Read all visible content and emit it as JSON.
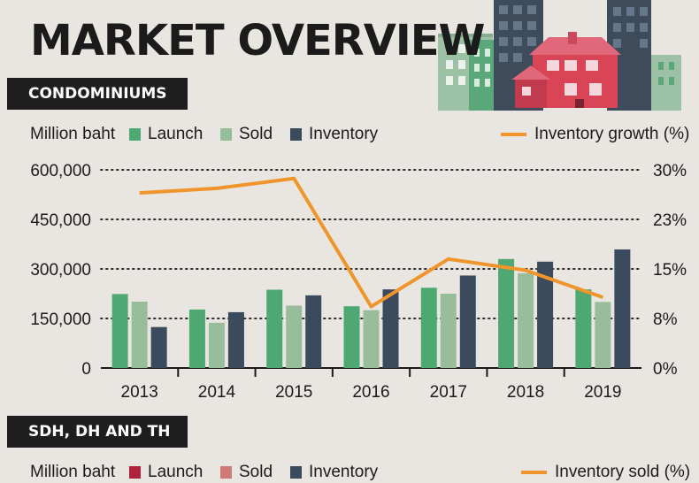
{
  "title": "MARKET OVERVIEW",
  "sections": {
    "condo": {
      "label": "CONDOMINIUMS"
    },
    "houses": {
      "label": "SDH, DH AND TH"
    }
  },
  "legend_top": {
    "unit": "Million baht",
    "launch": "Launch",
    "sold": "Sold",
    "inventory": "Inventory",
    "line": "Inventory growth (%)"
  },
  "legend_bottom": {
    "unit": "Million baht",
    "launch": "Launch",
    "sold": "Sold",
    "inventory": "Inventory",
    "line": "Inventory sold (%)"
  },
  "colors": {
    "launch": "#4ea872",
    "sold": "#98bd9a",
    "inventory": "#3b4a5c",
    "line": "#f0952c",
    "launch_bottom": "#b0213b",
    "sold_bottom": "#d07a78",
    "inventory_bottom": "#3b4a5c"
  },
  "chart_data": {
    "type": "bar",
    "categories": [
      "2013",
      "2014",
      "2015",
      "2016",
      "2017",
      "2018",
      "2019"
    ],
    "series": [
      {
        "name": "Launch",
        "values": [
          224000,
          177000,
          237000,
          187000,
          243000,
          330000,
          238000
        ]
      },
      {
        "name": "Sold",
        "values": [
          201000,
          137000,
          189000,
          175000,
          225000,
          287000,
          200000
        ]
      },
      {
        "name": "Inventory",
        "values": [
          124000,
          169000,
          220000,
          238000,
          280000,
          322000,
          359000
        ]
      }
    ],
    "line_series": {
      "name": "Inventory growth (%)",
      "values": [
        26.5,
        27.2,
        28.7,
        9.3,
        16.5,
        14.8,
        10.7
      ]
    },
    "y_ticks": [
      "600,000",
      "450,000",
      "300,000",
      "150,000",
      "0"
    ],
    "y2_ticks": [
      "30%",
      "23%",
      "15%",
      "8%",
      "0%"
    ],
    "ylim": [
      0,
      600000
    ],
    "y2lim": [
      0,
      30
    ],
    "grid": "dotted horizontal",
    "legend": "top"
  }
}
